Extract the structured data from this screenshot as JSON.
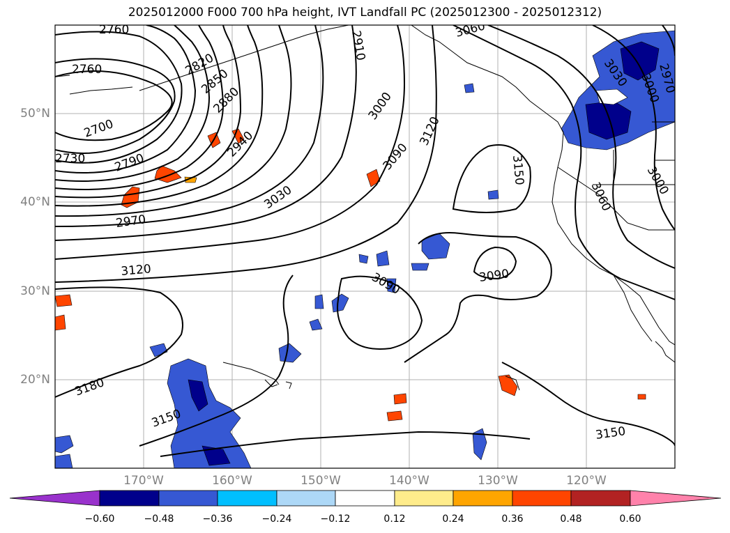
{
  "title": "2025012000 F000 700 hPa height, IVT Landfall PC (2025012300 - 2025012312)",
  "map": {
    "lat_labels": [
      "50°N",
      "40°N",
      "30°N",
      "20°N"
    ],
    "lon_labels": [
      "170°W",
      "160°W",
      "150°W",
      "140°W",
      "130°W",
      "120°W"
    ],
    "contour_labels": [
      {
        "text": "2760"
      },
      {
        "text": "2760"
      },
      {
        "text": "2820"
      },
      {
        "text": "2850"
      },
      {
        "text": "2880"
      },
      {
        "text": "2910"
      },
      {
        "text": "3060"
      },
      {
        "text": "2700"
      },
      {
        "text": "2730"
      },
      {
        "text": "2790"
      },
      {
        "text": "2940"
      },
      {
        "text": "3000"
      },
      {
        "text": "3120"
      },
      {
        "text": "3090"
      },
      {
        "text": "3150"
      },
      {
        "text": "3030"
      },
      {
        "text": "2970"
      },
      {
        "text": "3120"
      },
      {
        "text": "3090"
      },
      {
        "text": "3090"
      },
      {
        "text": "3180"
      },
      {
        "text": "3150"
      },
      {
        "text": "3150"
      },
      {
        "text": "3030"
      },
      {
        "text": "3000"
      },
      {
        "text": "2970"
      },
      {
        "text": "3060"
      },
      {
        "text": "3000"
      }
    ]
  },
  "colorbar": {
    "ticks": [
      "−0.60",
      "−0.48",
      "−0.36",
      "−0.24",
      "−0.12",
      "0.12",
      "0.24",
      "0.36",
      "0.48",
      "0.60"
    ],
    "colors": [
      "#9932cc",
      "#00008b",
      "#3658d3",
      "#00bfff",
      "#add8f7",
      "#ffffff",
      "#ffec8b",
      "#ffa500",
      "#ff4500",
      "#b22222",
      "#ff82ab"
    ]
  }
}
